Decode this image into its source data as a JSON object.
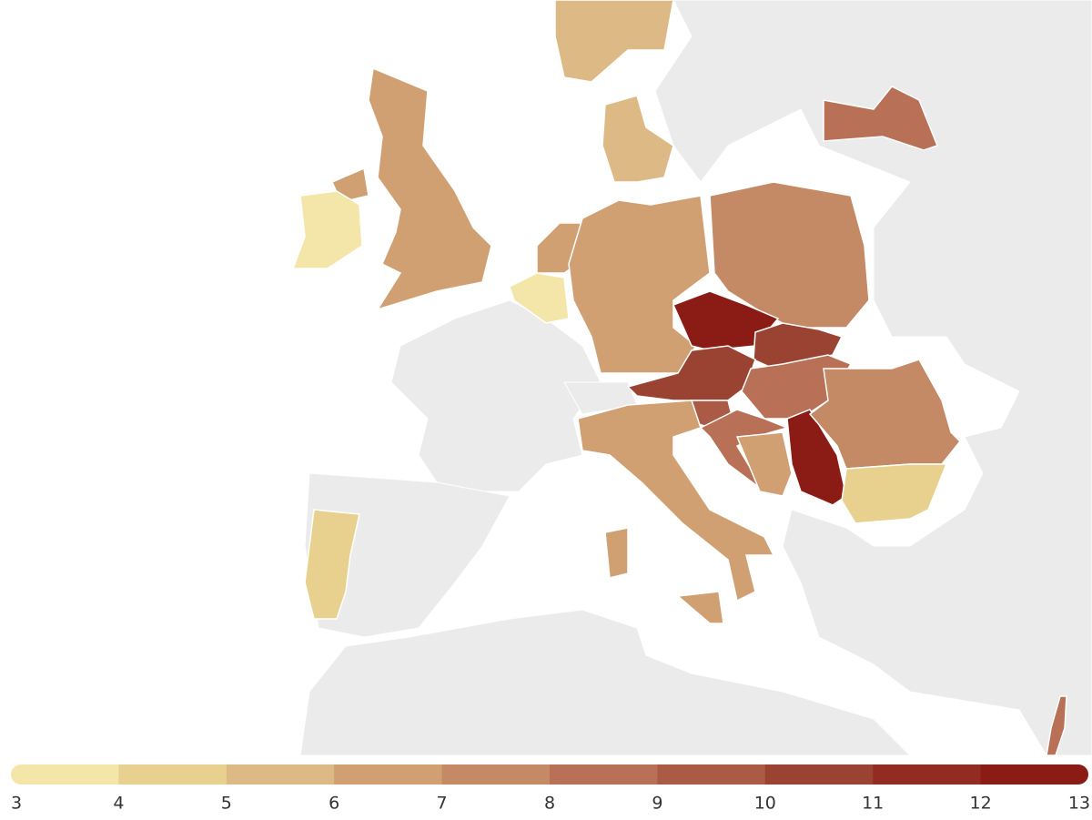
{
  "map": {
    "regions": [
      {
        "value": 6.5
      },
      {
        "value": 6.5
      },
      {
        "value": 3.5
      },
      {
        "value": 5.5
      },
      {
        "value": 5.5
      },
      {
        "value": 6.5
      },
      {
        "value": 3.8
      },
      {
        "value": 6.5
      },
      {
        "value": 7.5
      },
      {
        "value": 8.5
      },
      {
        "value": 12.5
      },
      {
        "value": 10.5
      },
      {
        "value": 10.2
      },
      {
        "value": 8.5
      },
      {
        "value": 9.5
      },
      {
        "value": 8.5
      },
      {
        "value": 6.5
      },
      {
        "value": 12.5
      },
      {
        "value": 7.5
      },
      {
        "value": 4.5
      },
      {
        "value": 6.2
      },
      {
        "value": 6.2
      },
      {
        "value": 6.2
      },
      {
        "value": 4.5
      },
      {
        "value": 8.5
      }
    ],
    "legend": {
      "ticks": [
        3,
        4,
        5,
        6,
        7,
        8,
        9,
        10,
        11,
        12,
        13
      ],
      "colors": [
        "#f3e6a8",
        "#e8d08f",
        "#ddb985",
        "#d09f72",
        "#c48965",
        "#b87156",
        "#aa5a45",
        "#9b4333",
        "#922b22",
        "#8a1b15"
      ]
    }
  }
}
